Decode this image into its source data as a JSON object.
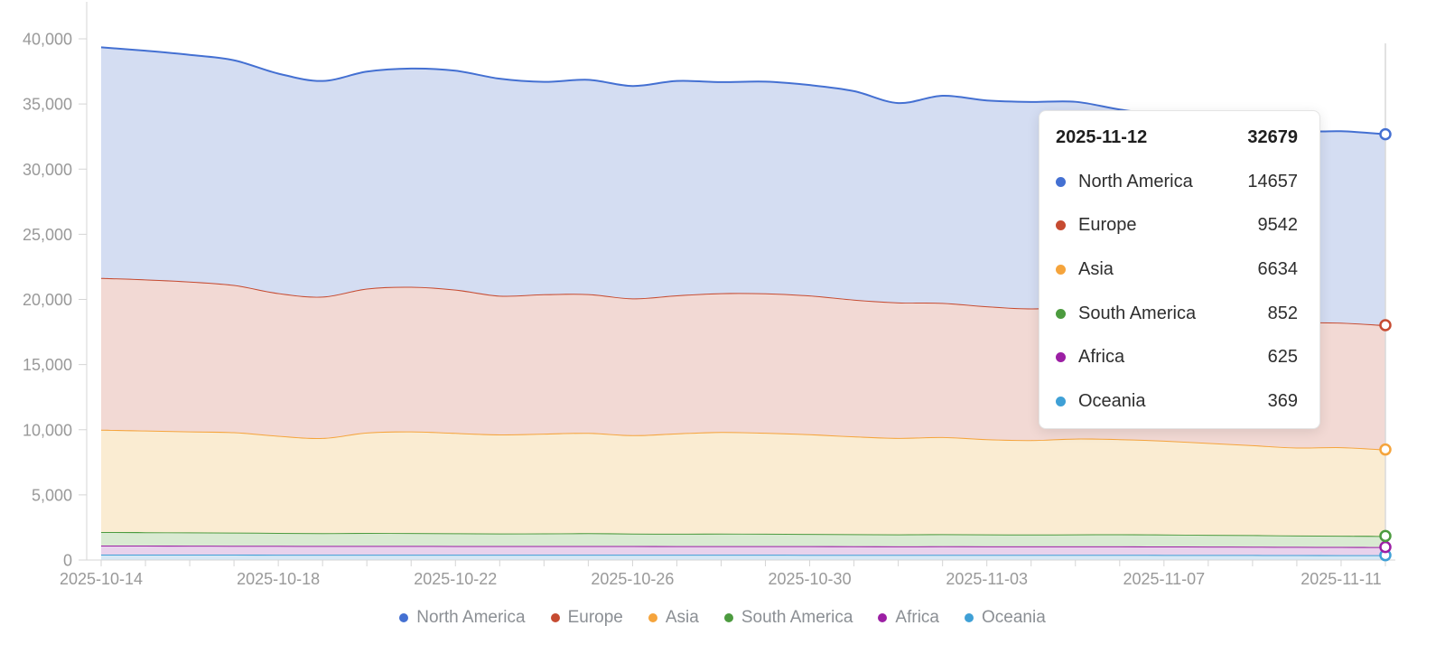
{
  "chart_data": {
    "type": "area",
    "stacked": true,
    "smooth": true,
    "title": "",
    "xlabel": "",
    "ylabel": "",
    "x": [
      "2025-10-14",
      "2025-10-15",
      "2025-10-16",
      "2025-10-17",
      "2025-10-18",
      "2025-10-19",
      "2025-10-20",
      "2025-10-21",
      "2025-10-22",
      "2025-10-23",
      "2025-10-24",
      "2025-10-25",
      "2025-10-26",
      "2025-10-27",
      "2025-10-28",
      "2025-10-29",
      "2025-10-30",
      "2025-10-31",
      "2025-11-01",
      "2025-11-02",
      "2025-11-03",
      "2025-11-04",
      "2025-11-05",
      "2025-11-06",
      "2025-11-07",
      "2025-11-08",
      "2025-11-09",
      "2025-11-10",
      "2025-11-11",
      "2025-11-12"
    ],
    "x_label_indices": [
      0,
      4,
      8,
      12,
      16,
      20,
      24,
      28
    ],
    "ylim": [
      0,
      40000
    ],
    "y_tick_step": 5000,
    "y_tick_labels": [
      "0",
      "5,000",
      "10,000",
      "15,000",
      "20,000",
      "25,000",
      "30,000",
      "35,000",
      "40,000"
    ],
    "grid": false,
    "legend_position": "bottom",
    "axis_color": "#d5d5d5",
    "axis_label_color": "#999999",
    "crosshair_color": "#d9d9d9",
    "stack_order": "last-series-at-bottom",
    "end_markers": "open-circle",
    "hover_index": 29,
    "series": [
      {
        "name": "North America",
        "color": "#4470d2",
        "fill": "#d4ddf2",
        "values": [
          17700,
          17550,
          17400,
          17250,
          16850,
          16550,
          16650,
          16750,
          16800,
          16650,
          16300,
          16450,
          16300,
          16450,
          16200,
          16250,
          16150,
          16000,
          15300,
          15900,
          15800,
          15850,
          15700,
          15250,
          15000,
          14800,
          14700,
          14600,
          14700,
          14657
        ]
      },
      {
        "name": "Europe",
        "color": "#c64b31",
        "fill": "#f2d9d4",
        "values": [
          11650,
          11600,
          11500,
          11300,
          10950,
          10850,
          11050,
          11100,
          11000,
          10650,
          10700,
          10650,
          10500,
          10600,
          10650,
          10700,
          10650,
          10500,
          10400,
          10300,
          10200,
          10100,
          10150,
          10050,
          9950,
          9850,
          9750,
          9650,
          9550,
          9542
        ]
      },
      {
        "name": "Asia",
        "color": "#f5a43c",
        "fill": "#faecd2",
        "values": [
          7850,
          7800,
          7750,
          7700,
          7450,
          7300,
          7700,
          7800,
          7700,
          7600,
          7650,
          7700,
          7550,
          7700,
          7800,
          7750,
          7650,
          7500,
          7400,
          7450,
          7300,
          7250,
          7350,
          7300,
          7200,
          7050,
          6900,
          6750,
          6800,
          6634
        ]
      },
      {
        "name": "South America",
        "color": "#4c9b3f",
        "fill": "#d9ead2",
        "values": [
          1040,
          1030,
          1020,
          1010,
          995,
          985,
          1000,
          990,
          975,
          965,
          970,
          980,
          960,
          950,
          960,
          950,
          940,
          930,
          920,
          930,
          920,
          910,
          920,
          930,
          920,
          900,
          890,
          870,
          860,
          852
        ]
      },
      {
        "name": "Africa",
        "color": "#9c1fa4",
        "fill": "#e8d2ec",
        "values": [
          690,
          688,
          685,
          682,
          678,
          672,
          674,
          672,
          670,
          667,
          668,
          670,
          666,
          662,
          664,
          662,
          660,
          656,
          652,
          654,
          652,
          650,
          652,
          650,
          646,
          642,
          638,
          632,
          628,
          625
        ]
      },
      {
        "name": "Oceania",
        "color": "#3fa0d6",
        "fill": "#d7e8f5",
        "values": [
          420,
          418,
          416,
          413,
          410,
          408,
          410,
          409,
          408,
          406,
          407,
          408,
          406,
          404,
          405,
          404,
          402,
          400,
          398,
          399,
          398,
          396,
          397,
          396,
          394,
          390,
          386,
          380,
          373,
          369
        ]
      }
    ]
  },
  "tooltip": {
    "date": "2025-11-12",
    "total": "32679",
    "rows": [
      {
        "name": "North America",
        "value": "14657"
      },
      {
        "name": "Europe",
        "value": "9542"
      },
      {
        "name": "Asia",
        "value": "6634"
      },
      {
        "name": "South America",
        "value": "852"
      },
      {
        "name": "Africa",
        "value": "625"
      },
      {
        "name": "Oceania",
        "value": "369"
      }
    ]
  },
  "legend": {
    "items": [
      "North America",
      "Europe",
      "Asia",
      "South America",
      "Africa",
      "Oceania"
    ]
  }
}
